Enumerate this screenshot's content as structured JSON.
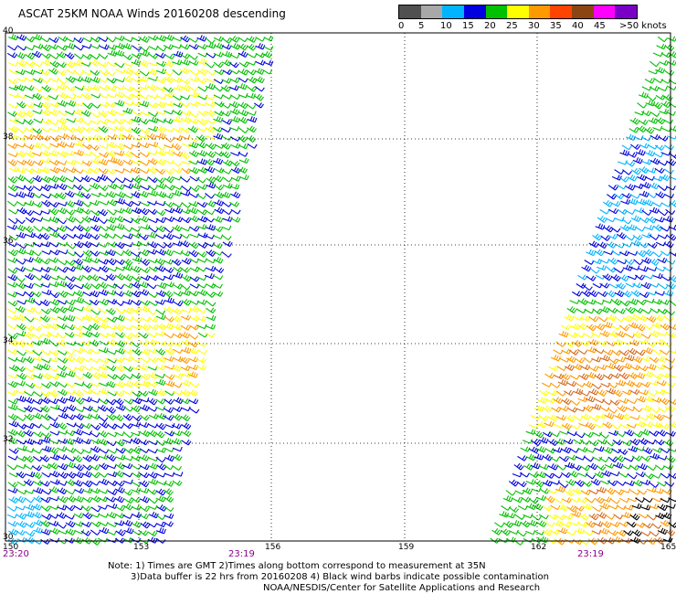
{
  "title": "ASCAT 25KM NOAA Winds 20160208 descending",
  "legend": {
    "labels": [
      "0",
      "5",
      "10",
      "15",
      "20",
      "25",
      "30",
      "35",
      "40",
      "45",
      ">50 knots"
    ],
    "colors": [
      "#505050",
      "#a8a8a8",
      "#00b4ff",
      "#0000e0",
      "#00c000",
      "#ffff00",
      "#ff9900",
      "#ff4400",
      "#8b4513",
      "#ff00ff",
      "#7a00c8"
    ]
  },
  "map": {
    "lat_labels": [
      "40",
      "38",
      "36",
      "34",
      "32",
      "30"
    ],
    "lon_labels": [
      "150",
      "153",
      "156",
      "159",
      "162",
      "165"
    ],
    "pass_times": [
      "23:20",
      "23:19",
      "23:19"
    ],
    "barb_colors": {
      "blue": "#0000e0",
      "green": "#00c000",
      "yellow": "#ffff00",
      "orange": "#ff9900",
      "cyan": "#00b4ff",
      "brown": "#d2691e",
      "black": "#000000"
    }
  },
  "notes": {
    "line1": "Note: 1) Times are GMT 2)Times along bottom correspond to measurement at 35N",
    "line2": "3)Data buffer is 22 hrs from 20160208 4) Black wind barbs indicate possible contamination",
    "line3": "NOAA/NESDIS/Center for Satellite Applications and Research"
  }
}
